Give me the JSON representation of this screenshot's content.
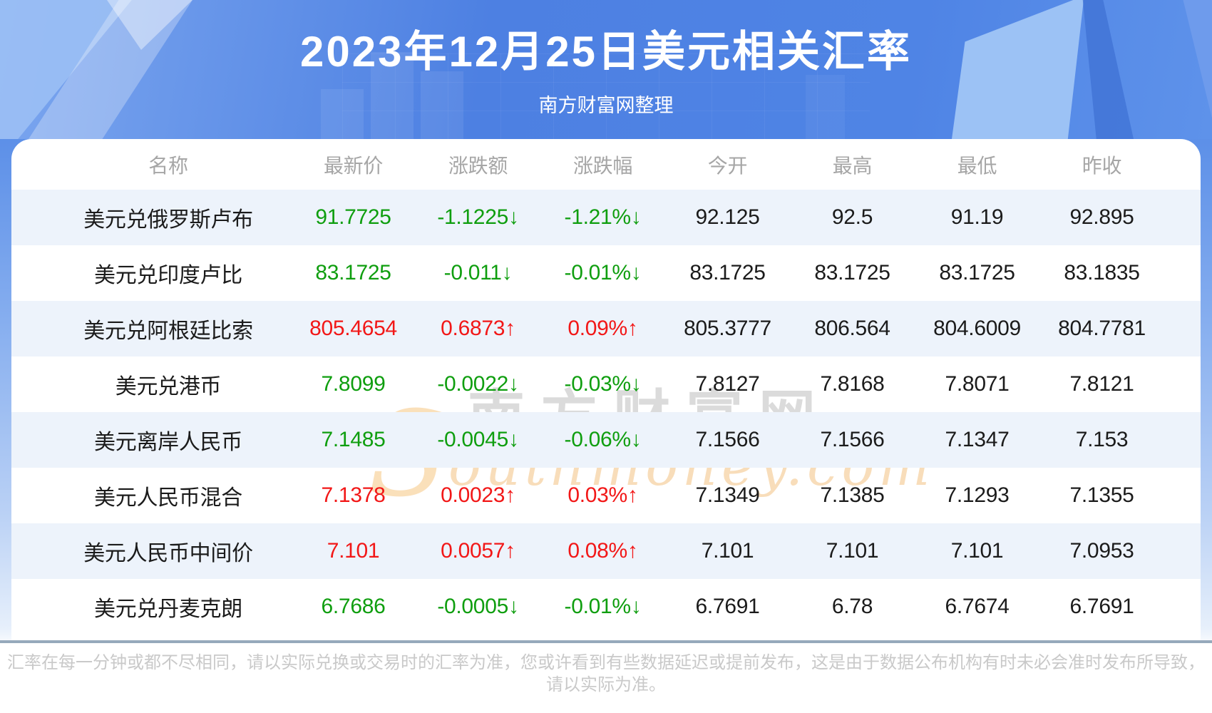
{
  "banner": {
    "subtitle": "南方财富网整理"
  },
  "watermark": {
    "cjk": "南方财富网",
    "latin_s": "S",
    "latin_rest": "outhmoney.com"
  },
  "chart_data": {
    "type": "table",
    "title": "2023年12月25日美元相关汇率",
    "columns": [
      "名称",
      "最新价",
      "涨跌额",
      "涨跌幅",
      "今开",
      "最高",
      "最低",
      "昨收"
    ],
    "rows": [
      {
        "name": "美元兑俄罗斯卢布",
        "last": "91.7725",
        "change": "-1.1225↓",
        "pct": "-1.21%↓",
        "open": "92.125",
        "high": "92.5",
        "low": "91.19",
        "prev": "92.895",
        "trend": "down"
      },
      {
        "name": "美元兑印度卢比",
        "last": "83.1725",
        "change": "-0.011↓",
        "pct": "-0.01%↓",
        "open": "83.1725",
        "high": "83.1725",
        "low": "83.1725",
        "prev": "83.1835",
        "trend": "down"
      },
      {
        "name": "美元兑阿根廷比索",
        "last": "805.4654",
        "change": "0.6873↑",
        "pct": "0.09%↑",
        "open": "805.3777",
        "high": "806.564",
        "low": "804.6009",
        "prev": "804.7781",
        "trend": "up"
      },
      {
        "name": "美元兑港币",
        "last": "7.8099",
        "change": "-0.0022↓",
        "pct": "-0.03%↓",
        "open": "7.8127",
        "high": "7.8168",
        "low": "7.8071",
        "prev": "7.8121",
        "trend": "down"
      },
      {
        "name": "美元离岸人民币",
        "last": "7.1485",
        "change": "-0.0045↓",
        "pct": "-0.06%↓",
        "open": "7.1566",
        "high": "7.1566",
        "low": "7.1347",
        "prev": "7.153",
        "trend": "down"
      },
      {
        "name": "美元人民币混合",
        "last": "7.1378",
        "change": "0.0023↑",
        "pct": "0.03%↑",
        "open": "7.1349",
        "high": "7.1385",
        "low": "7.1293",
        "prev": "7.1355",
        "trend": "up"
      },
      {
        "name": "美元人民币中间价",
        "last": "7.101",
        "change": "0.0057↑",
        "pct": "0.08%↑",
        "open": "7.101",
        "high": "7.101",
        "low": "7.101",
        "prev": "7.0953",
        "trend": "up"
      },
      {
        "name": "美元兑丹麦克朗",
        "last": "6.7686",
        "change": "-0.0005↓",
        "pct": "-0.01%↓",
        "open": "6.7691",
        "high": "6.78",
        "low": "6.7674",
        "prev": "6.7691",
        "trend": "down"
      }
    ]
  },
  "footer": {
    "line1": "汇率在每一分钟或都不尽相同，请以实际兑换或交易时的汇率为准，您或许看到有些数据延迟或提前发布，这是由于数据公布机构有时未必会准时发布所导致，",
    "line2": "请以实际为准。"
  },
  "colors": {
    "up_red": "#f21717",
    "down_green": "#0f9e0f",
    "banner_blue": "#4d80e2",
    "row_stripe": "#edf3fb",
    "divider": "#96a9bb"
  }
}
